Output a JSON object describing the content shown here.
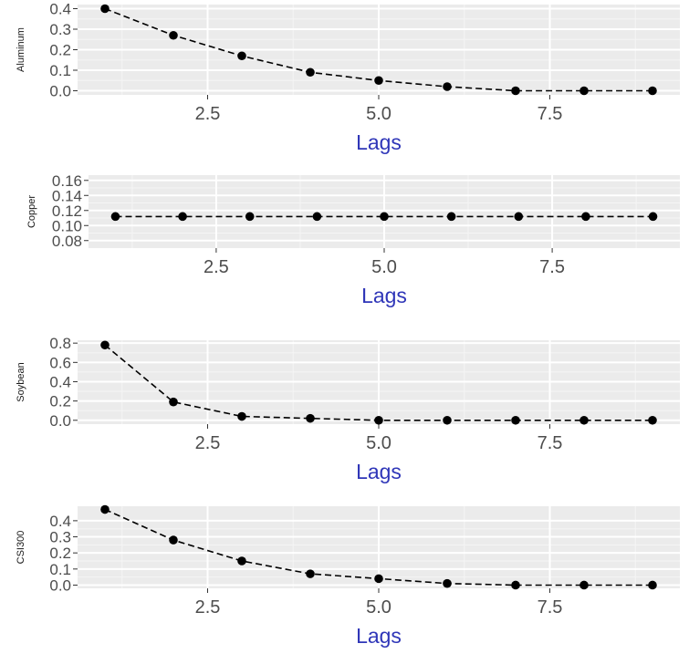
{
  "chart_data": [
    {
      "type": "line",
      "ylabel": "Aluminum",
      "xlabel": "Lags",
      "x": [
        1,
        2,
        3,
        4,
        5,
        6,
        7,
        8,
        9
      ],
      "values": [
        0.4,
        0.27,
        0.17,
        0.09,
        0.05,
        0.02,
        0.0,
        0.0,
        0.0
      ],
      "xlim": [
        0.6,
        9.4
      ],
      "ylim": [
        -0.02,
        0.42
      ],
      "xticks": [
        "2.5",
        "5.0",
        "7.5"
      ],
      "yticks": [
        "0.0",
        "0.1",
        "0.2",
        "0.3",
        "0.4"
      ],
      "line_style": "dashed",
      "grid": true
    },
    {
      "type": "line",
      "ylabel": "Copper",
      "xlabel": "Lags",
      "x": [
        1,
        2,
        3,
        4,
        5,
        6,
        7,
        8,
        9
      ],
      "values": [
        0.112,
        0.112,
        0.112,
        0.112,
        0.112,
        0.112,
        0.112,
        0.112,
        0.112
      ],
      "xlim": [
        0.6,
        9.4
      ],
      "ylim": [
        0.07,
        0.167
      ],
      "xticks": [
        "2.5",
        "5.0",
        "7.5"
      ],
      "yticks": [
        "0.08",
        "0.10",
        "0.12",
        "0.14",
        "0.16"
      ],
      "line_style": "dashed",
      "grid": true
    },
    {
      "type": "line",
      "ylabel": "Soybean",
      "xlabel": "Lags",
      "x": [
        1,
        2,
        3,
        4,
        5,
        6,
        7,
        8,
        9
      ],
      "values": [
        0.78,
        0.19,
        0.04,
        0.02,
        0.0,
        0.0,
        0.0,
        0.0,
        0.0
      ],
      "xlim": [
        0.6,
        9.4
      ],
      "ylim": [
        -0.04,
        0.83
      ],
      "xticks": [
        "2.5",
        "5.0",
        "7.5"
      ],
      "yticks": [
        "0.0",
        "0.2",
        "0.4",
        "0.6",
        "0.8"
      ],
      "line_style": "dashed",
      "grid": true
    },
    {
      "type": "line",
      "ylabel": "CSI300",
      "xlabel": "Lags",
      "x": [
        1,
        2,
        3,
        4,
        5,
        6,
        7,
        8,
        9
      ],
      "values": [
        0.47,
        0.28,
        0.15,
        0.07,
        0.04,
        0.01,
        0.0,
        0.0,
        0.0
      ],
      "xlim": [
        0.6,
        9.4
      ],
      "ylim": [
        -0.02,
        0.49
      ],
      "xticks": [
        "2.5",
        "5.0",
        "7.5"
      ],
      "yticks": [
        "0.0",
        "0.1",
        "0.2",
        "0.3",
        "0.4"
      ],
      "line_style": "dashed",
      "grid": true
    }
  ]
}
